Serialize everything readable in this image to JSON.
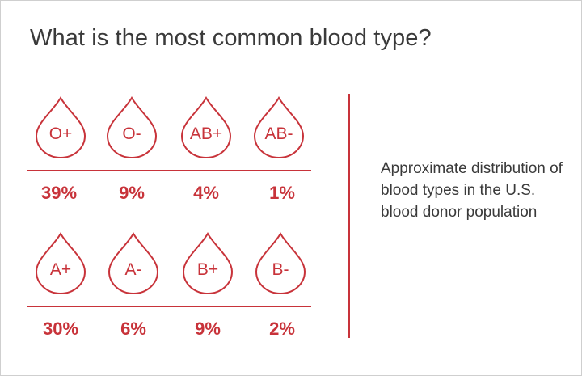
{
  "title": "What is the most common blood type?",
  "note": "Approximate distribution of blood types in the U.S. blood donor population",
  "accent_color": "#c8333a",
  "rows": [
    {
      "items": [
        {
          "label": "O+",
          "percent": "39%"
        },
        {
          "label": "O-",
          "percent": "9%"
        },
        {
          "label": "AB+",
          "percent": "4%"
        },
        {
          "label": "AB-",
          "percent": "1%"
        }
      ]
    },
    {
      "items": [
        {
          "label": "A+",
          "percent": "30%"
        },
        {
          "label": "A-",
          "percent": "6%"
        },
        {
          "label": "B+",
          "percent": "9%"
        },
        {
          "label": "B-",
          "percent": "2%"
        }
      ]
    }
  ]
}
